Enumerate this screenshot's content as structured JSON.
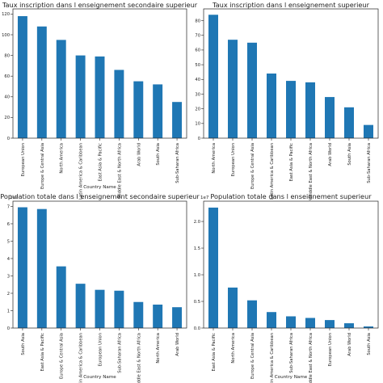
{
  "chart_data": [
    {
      "type": "bar",
      "title": "Taux inscription dans l enseignement secondaire superieur",
      "xlabel": "Country Name",
      "ylabel": "",
      "categories": [
        "European Union",
        "Europe & Central Asia",
        "North America",
        "Latin America & Caribbean",
        "East Asia & Pacific",
        "Middle East & North Africa",
        "Arab World",
        "South Asia",
        "Sub-Saharan Africa"
      ],
      "values": [
        118,
        108,
        95,
        80,
        79,
        66,
        55,
        52,
        35
      ],
      "ylim": [
        0,
        125
      ],
      "yticks": [
        "0",
        "20",
        "40",
        "60",
        "80",
        "100",
        "120"
      ],
      "ytick_values": [
        0,
        20,
        40,
        60,
        80,
        100,
        120
      ],
      "multiplier": "",
      "color": "#1f77b4"
    },
    {
      "type": "bar",
      "title": "Taux inscription dans l enseignement superieur",
      "xlabel": "",
      "ylabel": "",
      "categories": [
        "North America",
        "European Union",
        "Europe & Central Asia",
        "Latin America & Caribbean",
        "East Asia & Pacific",
        "Middle East & North Africa",
        "Arab World",
        "South Asia",
        "Sub-Saharan Africa"
      ],
      "values": [
        84,
        67,
        65,
        44,
        39,
        38,
        28,
        21,
        9
      ],
      "ylim": [
        0,
        88
      ],
      "yticks": [
        "0",
        "10",
        "20",
        "30",
        "40",
        "50",
        "60",
        "70",
        "80"
      ],
      "ytick_values": [
        0,
        10,
        20,
        30,
        40,
        50,
        60,
        70,
        80
      ],
      "multiplier": "",
      "color": "#1f77b4"
    },
    {
      "type": "bar",
      "title": "Population totale dans l enseignement secondaire superieur",
      "xlabel": "Country Name",
      "ylabel": "",
      "categories": [
        "South Asia",
        "East Asia & Pacific",
        "Europe & Central Asia",
        "Latin America & Caribbean",
        "European Union",
        "Sub-Saharan Africa",
        "Middle East & North Africa",
        "North America",
        "Arab World"
      ],
      "values": [
        6.95,
        6.85,
        3.55,
        2.55,
        2.2,
        2.15,
        1.5,
        1.35,
        1.2
      ],
      "ylim": [
        0,
        7.3
      ],
      "yticks": [
        "0",
        "1",
        "2",
        "3",
        "4",
        "5",
        "6",
        "7"
      ],
      "ytick_values": [
        0,
        1,
        2,
        3,
        4,
        5,
        6,
        7
      ],
      "multiplier": "1e7",
      "color": "#1f77b4"
    },
    {
      "type": "bar",
      "title": "Population totale dans l enseignement superieur",
      "xlabel": "Country Name",
      "ylabel": "",
      "categories": [
        "East Asia & Pacific",
        "North America",
        "Europe & Central Asia",
        "Latin America & Caribbean",
        "Sub-Saharan Africa",
        "Middle East & North Africa",
        "European Union",
        "Arab World",
        "South Asia"
      ],
      "values": [
        2.26,
        0.76,
        0.52,
        0.3,
        0.22,
        0.19,
        0.15,
        0.09,
        0.03
      ],
      "ylim": [
        0,
        2.38
      ],
      "yticks": [
        "0.0",
        "0.5",
        "1.0",
        "1.5",
        "2.0"
      ],
      "ytick_values": [
        0,
        0.5,
        1.0,
        1.5,
        2.0
      ],
      "multiplier": "1e7",
      "color": "#1f77b4"
    }
  ]
}
